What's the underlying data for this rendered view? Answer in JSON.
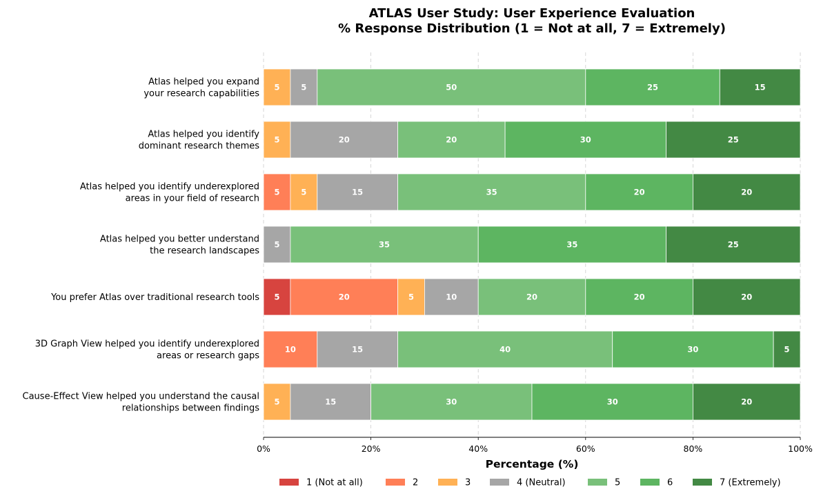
{
  "chart_data": {
    "type": "bar",
    "orientation": "horizontal",
    "stacked": true,
    "title": "ATLAS User Study: User Experience Evaluation",
    "subtitle": "% Response Distribution (1 = Not at all, 7 = Extremely)",
    "xlabel": "Percentage (%)",
    "ylabel": "",
    "xlim": [
      0,
      100
    ],
    "xticks": [
      0,
      20,
      40,
      60,
      80,
      100
    ],
    "xtick_labels": [
      "0%",
      "20%",
      "40%",
      "60%",
      "80%",
      "100%"
    ],
    "grid": "vertical dashed",
    "legend_position": "bottom",
    "categories": [
      [
        "Atlas helped you expand",
        "your research capabilities"
      ],
      [
        "Atlas helped you identify",
        "dominant research themes"
      ],
      [
        "Atlas helped you identify underexplored",
        "areas in your field of research"
      ],
      [
        "Atlas helped you better understand",
        "the research landscapes"
      ],
      [
        "You prefer Atlas over traditional research tools"
      ],
      [
        "3D Graph View helped you identify underexplored",
        "areas or research gaps"
      ],
      [
        "Cause-Effect View helped you understand the causal",
        "relationships between findings"
      ]
    ],
    "series": [
      {
        "name": "1 (Not at all)",
        "color": "#d7443f",
        "values": [
          0,
          0,
          0,
          0,
          5,
          0,
          0
        ]
      },
      {
        "name": "2",
        "color": "#ff7f57",
        "values": [
          0,
          0,
          5,
          0,
          20,
          10,
          0
        ]
      },
      {
        "name": "3",
        "color": "#ffb155",
        "values": [
          5,
          5,
          5,
          0,
          5,
          0,
          5
        ]
      },
      {
        "name": "4 (Neutral)",
        "color": "#a6a6a6",
        "values": [
          5,
          20,
          15,
          5,
          10,
          15,
          15
        ]
      },
      {
        "name": "5",
        "color": "#79c07a",
        "values": [
          50,
          20,
          35,
          35,
          20,
          40,
          30
        ]
      },
      {
        "name": "6",
        "color": "#5db561",
        "values": [
          25,
          30,
          20,
          35,
          20,
          30,
          30
        ]
      },
      {
        "name": "7 (Extremely)",
        "color": "#438944",
        "values": [
          15,
          25,
          20,
          25,
          20,
          5,
          20
        ]
      }
    ]
  }
}
